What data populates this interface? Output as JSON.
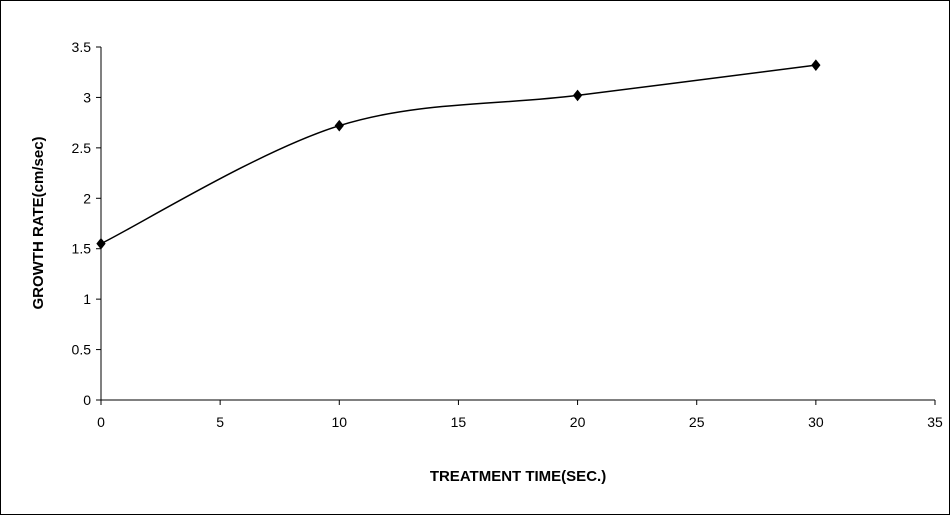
{
  "chart_data": {
    "type": "line",
    "title": "",
    "xlabel": "TREATMENT TIME(SEC.)",
    "ylabel": "GROWTH RATE(cm/sec)",
    "xlim": [
      0,
      35
    ],
    "ylim": [
      0,
      3.5
    ],
    "x_ticks": [
      "0",
      "5",
      "10",
      "15",
      "20",
      "25",
      "30",
      "35"
    ],
    "y_ticks": [
      "0",
      "0.5",
      "1",
      "1.5",
      "2",
      "2.5",
      "3",
      "3.5"
    ],
    "grid": false,
    "legend": "none",
    "smoothed": true,
    "series": [
      {
        "x": [
          0,
          10,
          20,
          30
        ],
        "y": [
          1.55,
          2.72,
          3.02,
          3.32
        ]
      }
    ],
    "colors": {
      "line": "#000000",
      "marker": "#000000",
      "axis": "#000000"
    }
  }
}
